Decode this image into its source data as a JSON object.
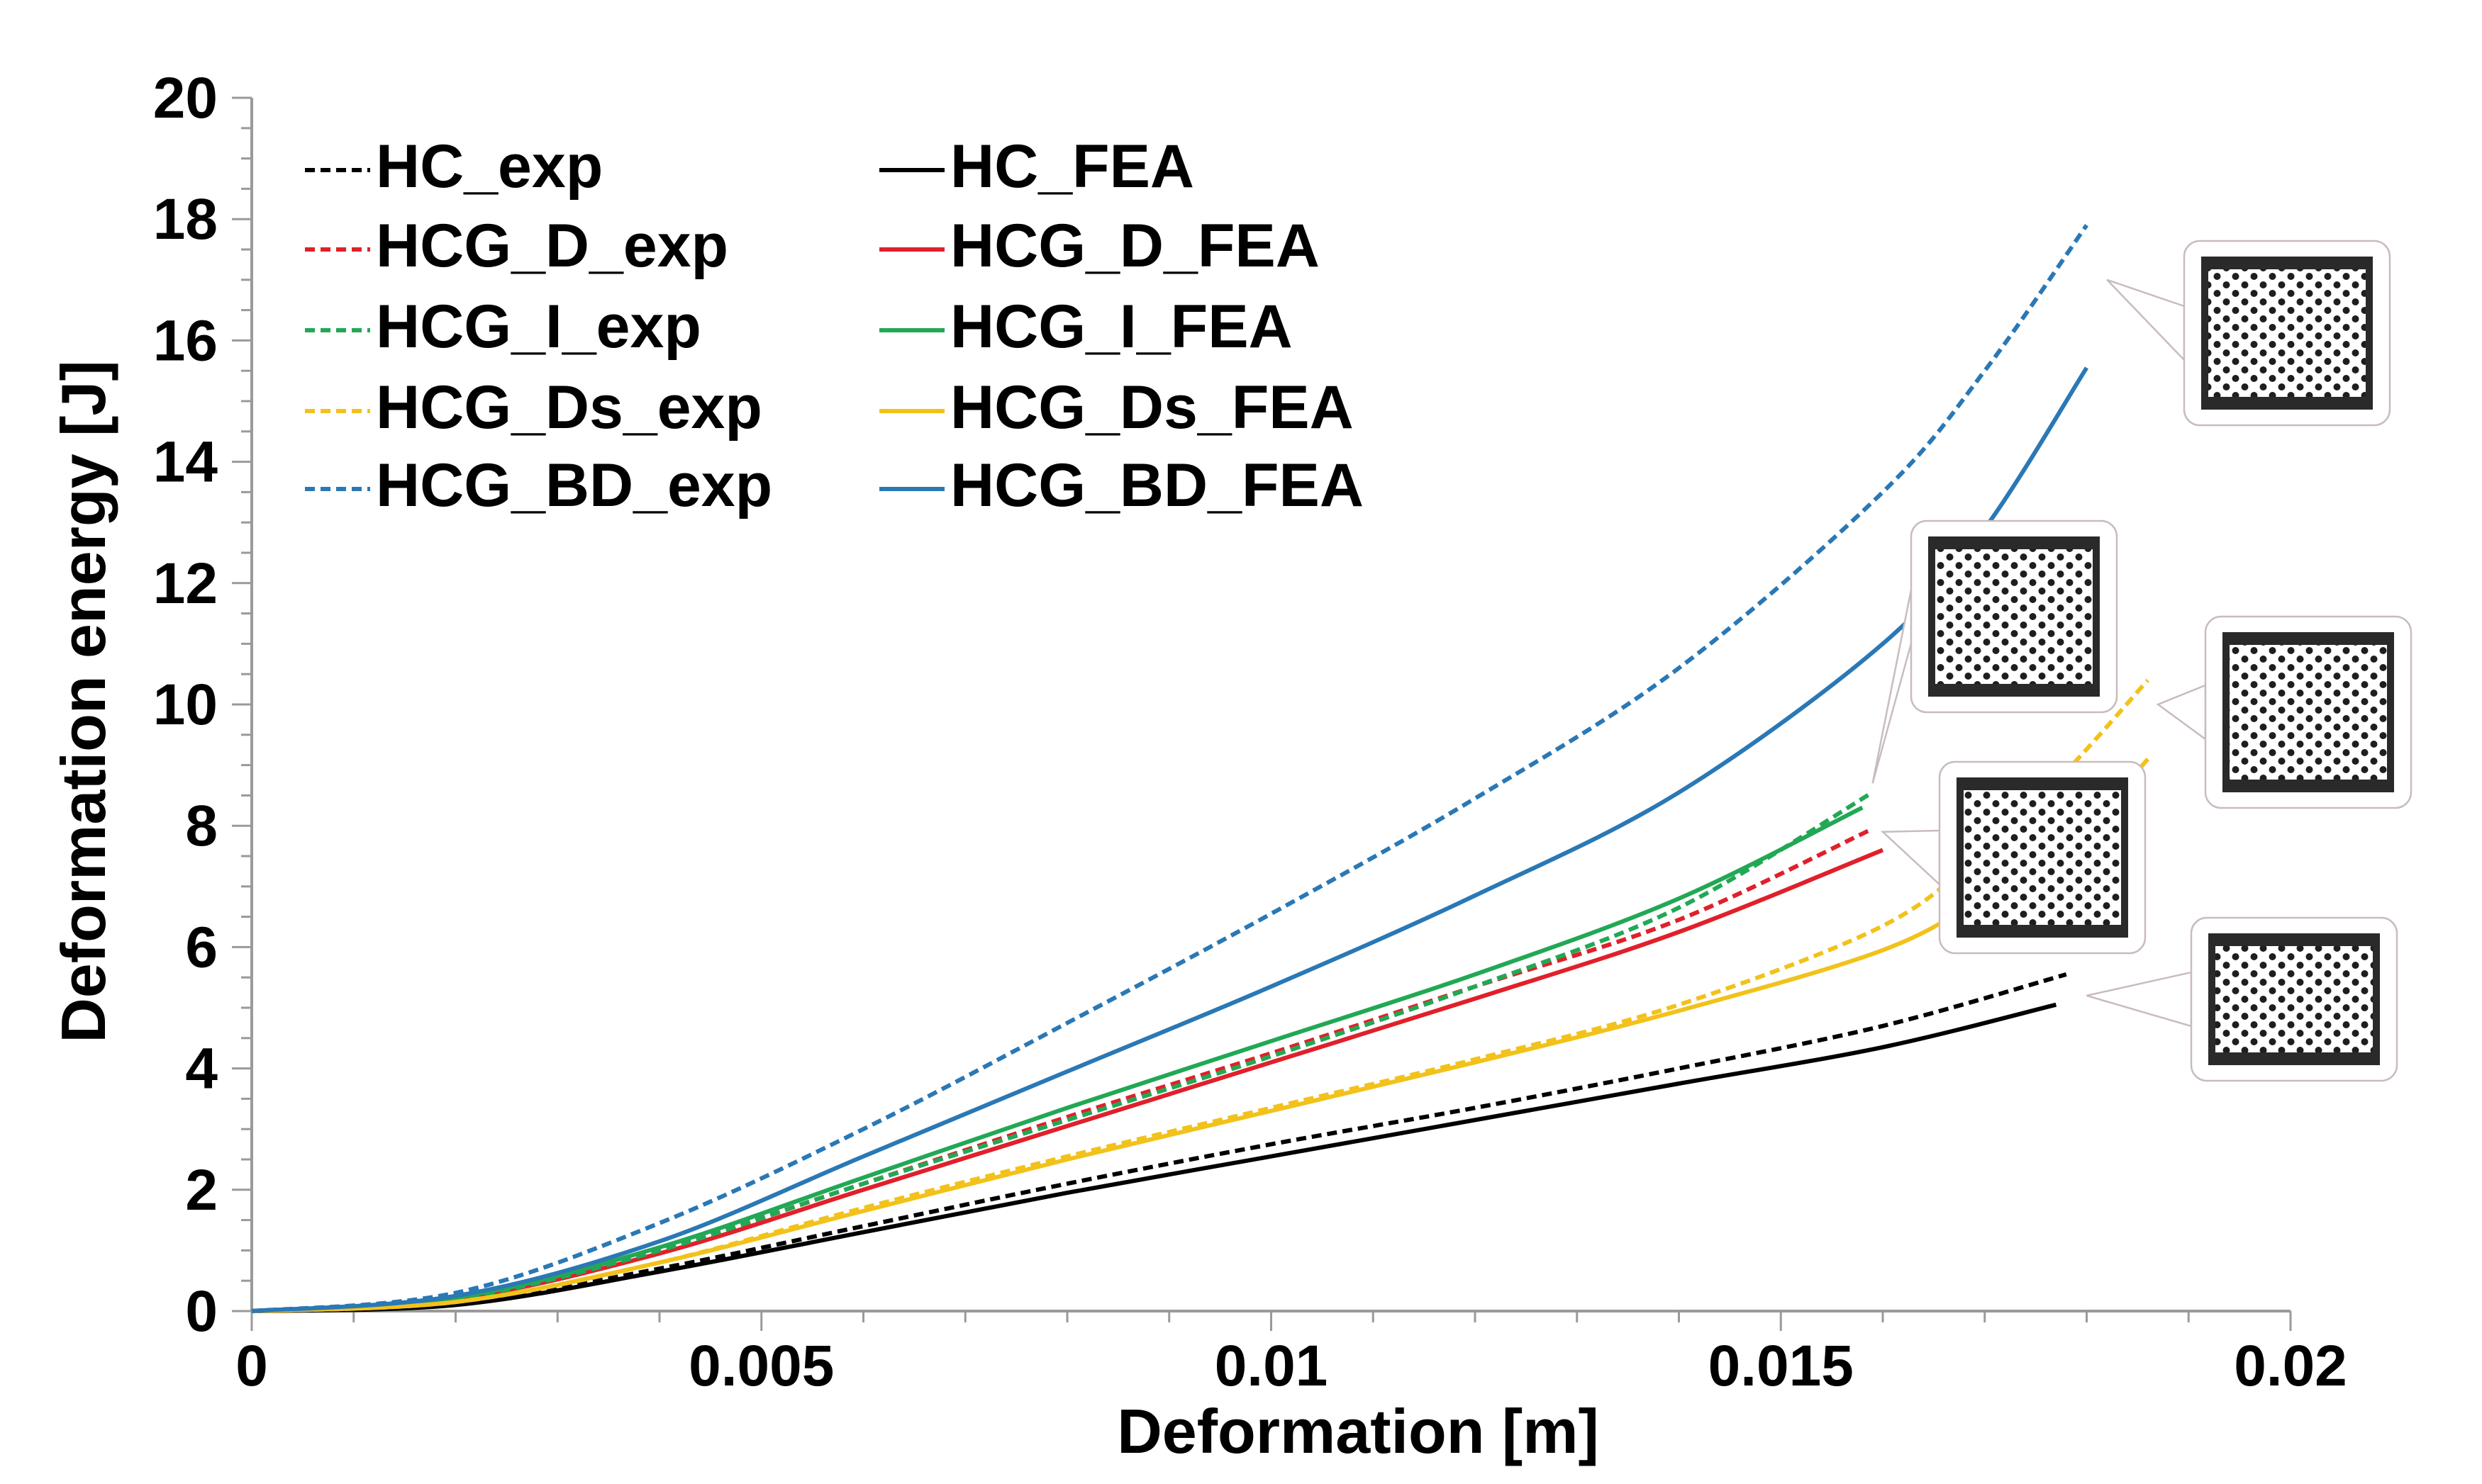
{
  "chart_data": {
    "type": "line",
    "title": "",
    "xlabel": "Deformation [m]",
    "ylabel": "Deformation energy [J]",
    "xlim": [
      0,
      0.02
    ],
    "ylim": [
      0,
      20
    ],
    "x_ticks": [
      0,
      0.005,
      0.01,
      0.015,
      0.02
    ],
    "x_tick_labels": [
      "0",
      "0.005",
      "0.01",
      "0.015",
      "0.02"
    ],
    "y_ticks": [
      0,
      2,
      4,
      6,
      8,
      10,
      12,
      14,
      16,
      18,
      20
    ],
    "y_tick_labels": [
      "0",
      "2",
      "4",
      "6",
      "8",
      "10",
      "12",
      "14",
      "16",
      "18",
      "20"
    ],
    "grid": false,
    "legend_position": "top-left",
    "series": [
      {
        "name": "HC_exp",
        "color": "#000000",
        "dash": true,
        "points": [
          [
            0,
            0
          ],
          [
            0.002,
            0.12
          ],
          [
            0.004,
            0.7
          ],
          [
            0.006,
            1.4
          ],
          [
            0.008,
            2.1
          ],
          [
            0.01,
            2.75
          ],
          [
            0.012,
            3.35
          ],
          [
            0.014,
            4.0
          ],
          [
            0.016,
            4.7
          ],
          [
            0.0178,
            5.55
          ]
        ]
      },
      {
        "name": "HC_FEA",
        "color": "#000000",
        "dash": false,
        "points": [
          [
            0,
            0
          ],
          [
            0.002,
            0.1
          ],
          [
            0.004,
            0.65
          ],
          [
            0.006,
            1.3
          ],
          [
            0.008,
            1.95
          ],
          [
            0.01,
            2.55
          ],
          [
            0.012,
            3.15
          ],
          [
            0.014,
            3.75
          ],
          [
            0.016,
            4.35
          ],
          [
            0.0177,
            5.05
          ]
        ]
      },
      {
        "name": "HCG_D_exp",
        "color": "#e0202a",
        "dash": true,
        "points": [
          [
            0,
            0
          ],
          [
            0.002,
            0.2
          ],
          [
            0.004,
            1.0
          ],
          [
            0.006,
            2.1
          ],
          [
            0.008,
            3.2
          ],
          [
            0.01,
            4.25
          ],
          [
            0.012,
            5.35
          ],
          [
            0.014,
            6.45
          ],
          [
            0.0159,
            7.95
          ]
        ]
      },
      {
        "name": "HCG_D_FEA",
        "color": "#e0202a",
        "dash": false,
        "points": [
          [
            0,
            0
          ],
          [
            0.002,
            0.2
          ],
          [
            0.004,
            0.95
          ],
          [
            0.006,
            2.0
          ],
          [
            0.008,
            3.05
          ],
          [
            0.01,
            4.1
          ],
          [
            0.012,
            5.15
          ],
          [
            0.014,
            6.25
          ],
          [
            0.016,
            7.6
          ]
        ]
      },
      {
        "name": "HCG_I_exp",
        "color": "#22a855",
        "dash": true,
        "points": [
          [
            0,
            0
          ],
          [
            0.002,
            0.2
          ],
          [
            0.004,
            1.0
          ],
          [
            0.006,
            2.1
          ],
          [
            0.008,
            3.15
          ],
          [
            0.01,
            4.2
          ],
          [
            0.012,
            5.35
          ],
          [
            0.014,
            6.65
          ],
          [
            0.0159,
            8.55
          ]
        ]
      },
      {
        "name": "HCG_I_FEA",
        "color": "#22a855",
        "dash": false,
        "points": [
          [
            0,
            0
          ],
          [
            0.002,
            0.22
          ],
          [
            0.004,
            1.05
          ],
          [
            0.006,
            2.2
          ],
          [
            0.008,
            3.35
          ],
          [
            0.01,
            4.45
          ],
          [
            0.012,
            5.55
          ],
          [
            0.014,
            6.8
          ],
          [
            0.0158,
            8.3
          ]
        ]
      },
      {
        "name": "HCG_Ds_exp",
        "color": "#f2c21b",
        "dash": true,
        "points": [
          [
            0,
            0
          ],
          [
            0.002,
            0.15
          ],
          [
            0.004,
            0.8
          ],
          [
            0.006,
            1.7
          ],
          [
            0.008,
            2.55
          ],
          [
            0.01,
            3.35
          ],
          [
            0.012,
            4.15
          ],
          [
            0.014,
            5.05
          ],
          [
            0.016,
            6.35
          ],
          [
            0.017,
            7.6
          ],
          [
            0.0178,
            8.9
          ],
          [
            0.0186,
            10.4
          ]
        ]
      },
      {
        "name": "HCG_Ds_FEA",
        "color": "#f2c21b",
        "dash": false,
        "points": [
          [
            0,
            0
          ],
          [
            0.002,
            0.15
          ],
          [
            0.004,
            0.8
          ],
          [
            0.006,
            1.65
          ],
          [
            0.008,
            2.5
          ],
          [
            0.01,
            3.3
          ],
          [
            0.012,
            4.1
          ],
          [
            0.014,
            4.95
          ],
          [
            0.016,
            5.95
          ],
          [
            0.017,
            6.85
          ],
          [
            0.018,
            8.0
          ],
          [
            0.0186,
            9.1
          ]
        ]
      },
      {
        "name": "HCG_BD_exp",
        "color": "#2a78b5",
        "dash": true,
        "points": [
          [
            0,
            0
          ],
          [
            0.002,
            0.3
          ],
          [
            0.004,
            1.45
          ],
          [
            0.006,
            3.0
          ],
          [
            0.008,
            4.75
          ],
          [
            0.01,
            6.55
          ],
          [
            0.012,
            8.45
          ],
          [
            0.014,
            10.6
          ],
          [
            0.016,
            13.5
          ],
          [
            0.017,
            15.5
          ],
          [
            0.018,
            17.9
          ]
        ]
      },
      {
        "name": "HCG_BD_FEA",
        "color": "#2a78b5",
        "dash": false,
        "points": [
          [
            0,
            0
          ],
          [
            0.002,
            0.25
          ],
          [
            0.004,
            1.15
          ],
          [
            0.006,
            2.55
          ],
          [
            0.008,
            3.95
          ],
          [
            0.01,
            5.35
          ],
          [
            0.012,
            6.85
          ],
          [
            0.014,
            8.55
          ],
          [
            0.016,
            11.0
          ],
          [
            0.017,
            12.9
          ],
          [
            0.018,
            15.55
          ]
        ]
      }
    ],
    "insets": [
      {
        "series": "HCG_BD",
        "pointer_x": 0.0182,
        "pointer_y": 17.0
      },
      {
        "series": "HCG_I",
        "pointer_x": 0.0159,
        "pointer_y": 8.7
      },
      {
        "series": "HCG_Ds",
        "pointer_x": 0.0187,
        "pointer_y": 10.0
      },
      {
        "series": "HCG_D",
        "pointer_x": 0.016,
        "pointer_y": 7.9
      },
      {
        "series": "HC",
        "pointer_x": 0.018,
        "pointer_y": 5.2
      }
    ]
  }
}
